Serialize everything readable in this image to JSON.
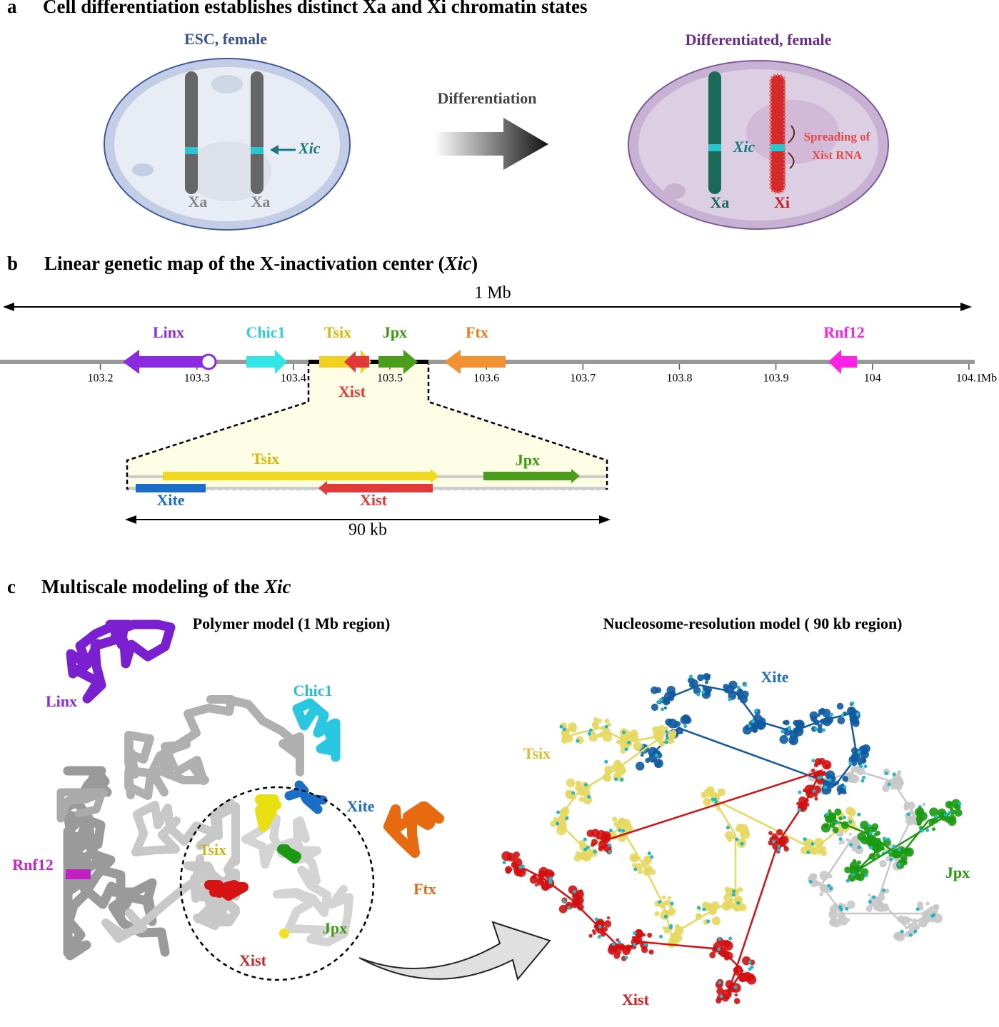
{
  "panel_a": {
    "label": "a",
    "title": "Cell differentiation establishes distinct Xa and Xi chromatin states",
    "left_cell": {
      "title": "ESC, female",
      "chromosome_1": "Xa",
      "chromosome_2": "Xa",
      "locus": "Xic"
    },
    "arrow": "Differentiation",
    "right_cell": {
      "title": "Differentiated, female",
      "chromosome_1": "Xa",
      "chromosome_2": "Xi",
      "locus": "Xic",
      "note_line_1": "Spreading of",
      "note_line_2": "Xist RNA"
    }
  },
  "panel_b": {
    "label": "b",
    "title_parts": [
      "Linear genetic map of the X-inactivation center (",
      "Xic",
      ")"
    ],
    "scale": "1 Mb",
    "xlim": [
      103.096,
      104.106
    ],
    "ticks": [
      103.2,
      103.3,
      103.4,
      103.5,
      103.6,
      103.7,
      103.8,
      103.9,
      104,
      104.1
    ],
    "unit": "Mb",
    "genes": [
      "Linx",
      "Chic1",
      "Tsix",
      "Xist",
      "Jpx",
      "Ftx",
      "Rnf12"
    ],
    "zoom": {
      "genes": [
        "Tsix",
        "Jpx",
        "Xite",
        "Xist"
      ],
      "scale": "90 kb"
    }
  },
  "panel_c": {
    "label": "c",
    "title_parts": [
      "Multiscale modeling of the ",
      "Xic"
    ],
    "left_title": "Polymer model  (1 Mb  region)",
    "right_title": "Nucleosome-resolution model ( 90 kb region)",
    "left_labels": [
      "Linx",
      "Chic1",
      "Xite",
      "Tsix",
      "Rnf12",
      "Ftx",
      "Jpx",
      "Xist"
    ],
    "right_labels": [
      "Xite",
      "Tsix",
      "Jpx",
      "Xist"
    ]
  }
}
